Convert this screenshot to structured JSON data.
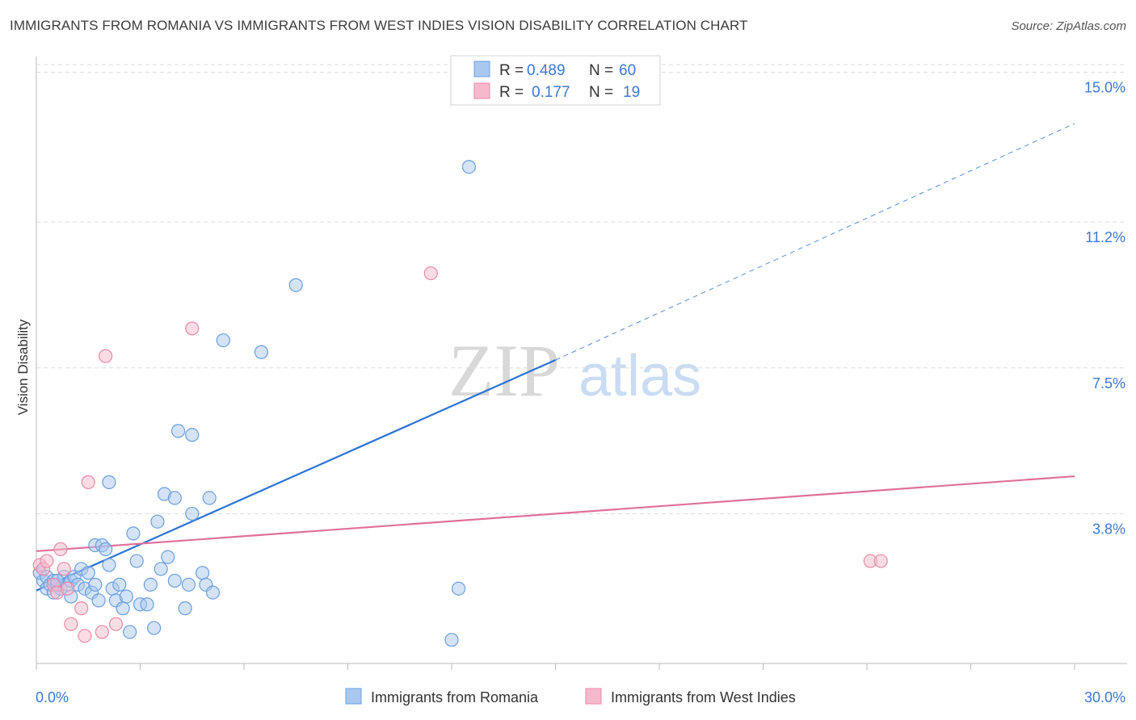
{
  "title": "IMMIGRANTS FROM ROMANIA VS IMMIGRANTS FROM WEST INDIES VISION DISABILITY CORRELATION CHART",
  "source": "Source: ZipAtlas.com",
  "watermark": {
    "zip": "ZIP",
    "atlas": "atlas"
  },
  "colors": {
    "romania_fill": "#a9c8f0",
    "romania_stroke": "#6b9fe0",
    "romania_line": "#2a72d4",
    "westindies_fill": "#f6b9cb",
    "westindies_stroke": "#e88aa8",
    "westindies_line": "#e0709a",
    "tick_text": "#3a78d4",
    "grid": "#dddddd"
  },
  "legend": [
    {
      "r_label": "R =",
      "r_value": "0.489",
      "n_label": "N =",
      "n_value": "60"
    },
    {
      "r_label": "R =",
      "r_value": "0.177",
      "n_label": "N =",
      "n_value": "19"
    }
  ],
  "chart_data": {
    "type": "scatter",
    "title": "IMMIGRANTS FROM ROMANIA VS IMMIGRANTS FROM WEST INDIES VISION DISABILITY CORRELATION CHART",
    "xlabel": "",
    "ylabel": "Vision Disability",
    "xlim": [
      0,
      30
    ],
    "ylim": [
      0,
      15.4
    ],
    "x_tick_labels": [
      "0.0%",
      "30.0%"
    ],
    "x_ticks": [
      0,
      3,
      6,
      9,
      12,
      15,
      18,
      21,
      24,
      27,
      30
    ],
    "y_ticks": [
      3.8,
      7.5,
      11.2,
      15.0
    ],
    "y_tick_labels": [
      "3.8%",
      "7.5%",
      "11.2%",
      "15.0%"
    ],
    "legend_position": "top-center",
    "series": [
      {
        "name": "Immigrants from Romania",
        "color": "#6b9fe0",
        "points": [
          [
            0.1,
            2.3
          ],
          [
            0.2,
            2.1
          ],
          [
            0.3,
            2.2
          ],
          [
            0.3,
            1.9
          ],
          [
            0.4,
            2.0
          ],
          [
            0.5,
            2.1
          ],
          [
            0.5,
            1.8
          ],
          [
            0.6,
            2.0
          ],
          [
            0.7,
            1.9
          ],
          [
            0.8,
            2.2
          ],
          [
            0.9,
            2.0
          ],
          [
            1.0,
            2.1
          ],
          [
            1.0,
            1.7
          ],
          [
            1.1,
            2.2
          ],
          [
            1.2,
            2.0
          ],
          [
            1.3,
            2.4
          ],
          [
            1.4,
            1.9
          ],
          [
            1.5,
            2.3
          ],
          [
            1.6,
            1.8
          ],
          [
            1.7,
            2.0
          ],
          [
            1.7,
            3.0
          ],
          [
            1.8,
            1.6
          ],
          [
            1.9,
            3.0
          ],
          [
            2.0,
            2.9
          ],
          [
            2.1,
            2.5
          ],
          [
            2.1,
            4.6
          ],
          [
            2.2,
            1.9
          ],
          [
            2.3,
            1.6
          ],
          [
            2.4,
            2.0
          ],
          [
            2.5,
            1.4
          ],
          [
            2.6,
            1.7
          ],
          [
            2.7,
            0.8
          ],
          [
            2.8,
            3.3
          ],
          [
            2.9,
            2.6
          ],
          [
            3.0,
            1.5
          ],
          [
            3.2,
            1.5
          ],
          [
            3.3,
            2.0
          ],
          [
            3.4,
            0.9
          ],
          [
            3.5,
            3.6
          ],
          [
            3.6,
            2.4
          ],
          [
            3.7,
            4.3
          ],
          [
            3.8,
            2.7
          ],
          [
            4.0,
            2.1
          ],
          [
            4.0,
            4.2
          ],
          [
            4.1,
            5.9
          ],
          [
            4.3,
            1.4
          ],
          [
            4.4,
            2.0
          ],
          [
            4.5,
            5.8
          ],
          [
            4.5,
            3.8
          ],
          [
            4.8,
            2.3
          ],
          [
            4.9,
            2.0
          ],
          [
            5.0,
            4.2
          ],
          [
            5.1,
            1.8
          ],
          [
            5.4,
            8.2
          ],
          [
            6.5,
            7.9
          ],
          [
            7.5,
            9.6
          ],
          [
            12.0,
            0.6
          ],
          [
            12.2,
            1.9
          ],
          [
            12.5,
            12.6
          ],
          [
            0.6,
            2.1
          ]
        ],
        "trendline": {
          "x": [
            0,
            15
          ],
          "y": [
            1.85,
            7.7
          ],
          "dashed_extension_to": [
            30,
            13.7
          ]
        }
      },
      {
        "name": "Immigrants from West Indies",
        "color": "#e88aa8",
        "points": [
          [
            0.1,
            2.5
          ],
          [
            0.2,
            2.4
          ],
          [
            0.3,
            2.6
          ],
          [
            0.5,
            2.0
          ],
          [
            0.6,
            1.8
          ],
          [
            0.7,
            2.9
          ],
          [
            0.8,
            2.4
          ],
          [
            0.9,
            1.9
          ],
          [
            1.0,
            1.0
          ],
          [
            1.3,
            1.4
          ],
          [
            1.4,
            0.7
          ],
          [
            1.5,
            4.6
          ],
          [
            1.9,
            0.8
          ],
          [
            2.0,
            7.8
          ],
          [
            2.3,
            1.0
          ],
          [
            4.5,
            8.5
          ],
          [
            11.4,
            9.9
          ],
          [
            24.1,
            2.6
          ],
          [
            24.4,
            2.6
          ]
        ],
        "trendline": {
          "x": [
            0,
            30
          ],
          "y": [
            2.85,
            4.75
          ]
        }
      }
    ]
  }
}
